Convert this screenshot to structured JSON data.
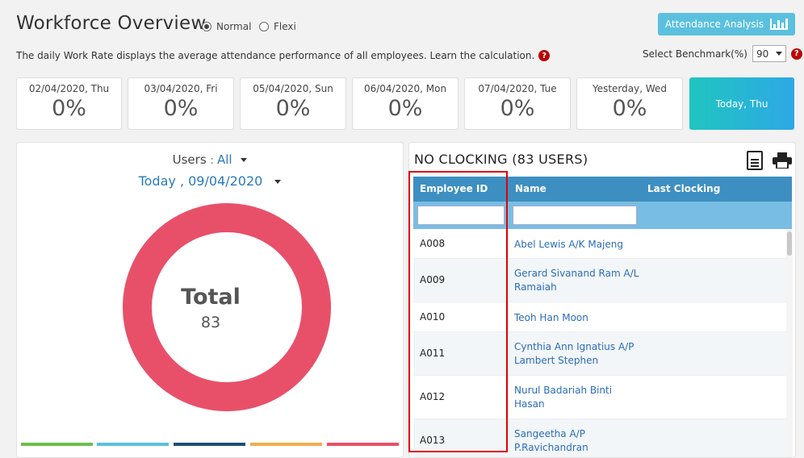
{
  "header": {
    "title": "Workforce Overview",
    "mode_options": [
      {
        "label": "Normal",
        "selected": true
      },
      {
        "label": "Flexi",
        "selected": false
      }
    ],
    "analysis_button": "Attendance Analysis",
    "description": "The daily Work Rate displays the average attendance performance of all employees. Learn the calculation.",
    "benchmark_label": "Select Benchmark(%)",
    "benchmark_value": "90"
  },
  "day_cards": [
    {
      "date": "02/04/2020, Thu",
      "percent": "0%"
    },
    {
      "date": "03/04/2020, Fri",
      "percent": "0%"
    },
    {
      "date": "05/04/2020, Sun",
      "percent": "0%"
    },
    {
      "date": "06/04/2020, Mon",
      "percent": "0%"
    },
    {
      "date": "07/04/2020, Tue",
      "percent": "0%"
    },
    {
      "date": "Yesterday, Wed",
      "percent": "0%"
    },
    {
      "date": "Today, Thu",
      "percent": ""
    }
  ],
  "summary": {
    "users_label": "Users",
    "users_filter": "All",
    "date_filter": "Today , 09/04/2020",
    "total_label": "Total",
    "total_value": "83",
    "donut_color": "#e8506a",
    "status_bar_colors": [
      "#6cbf4a",
      "#5bc0de",
      "#1d4e74",
      "#f0ad4e",
      "#e8506a"
    ]
  },
  "no_clocking": {
    "title": "NO CLOCKING (83 USERS)",
    "columns": [
      "Employee ID",
      "Name",
      "Last Clocking"
    ],
    "rows": [
      {
        "id": "A008",
        "name": "Abel Lewis A/K Majeng",
        "last": ""
      },
      {
        "id": "A009",
        "name": "Gerard Sivanand Ram A/L Ramaiah",
        "last": ""
      },
      {
        "id": "A010",
        "name": "Teoh Han Moon",
        "last": ""
      },
      {
        "id": "A011",
        "name": "Cynthia Ann Ignatius A/P Lambert Stephen",
        "last": ""
      },
      {
        "id": "A012",
        "name": "Nurul Badariah Binti Hasan",
        "last": ""
      },
      {
        "id": "A013",
        "name": "Sangeetha A/P P.Ravichandran",
        "last": ""
      }
    ]
  }
}
